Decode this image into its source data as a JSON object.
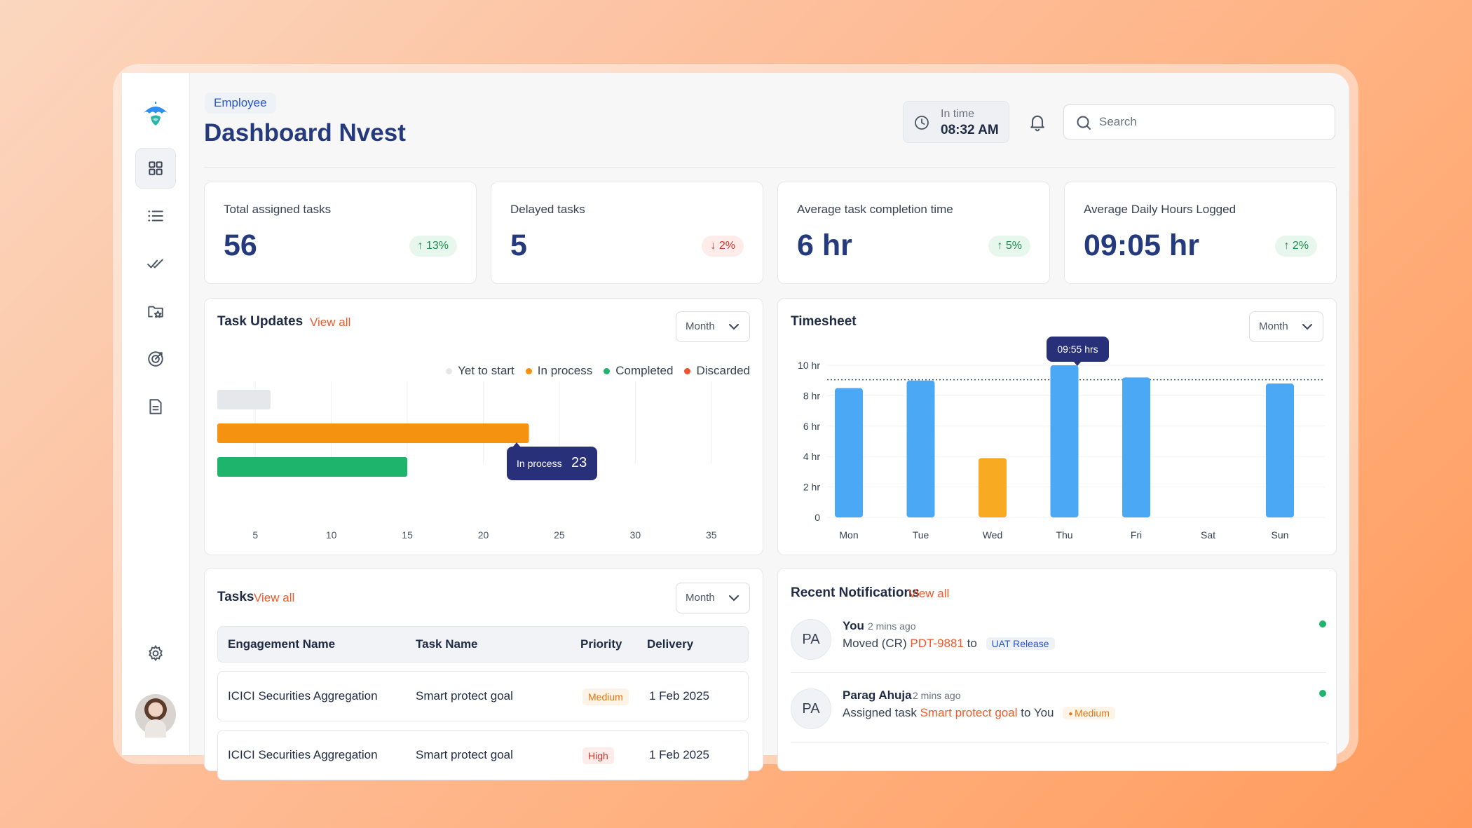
{
  "header": {
    "role_tag": "Employee",
    "title": "Dashboard Nvest",
    "in_time_label": "In time",
    "in_time_value": "08:32 AM",
    "search_placeholder": "Search"
  },
  "sidebar": {
    "items": [
      "grid-icon",
      "list-icon",
      "double-check-icon",
      "folder-star-icon",
      "target-icon",
      "document-icon",
      "settings-icon"
    ]
  },
  "stats": [
    {
      "label": "Total assigned tasks",
      "value": "56",
      "delta": "13%",
      "direction": "up"
    },
    {
      "label": "Delayed tasks",
      "value": "5",
      "delta": "2%",
      "direction": "down"
    },
    {
      "label": "Average task completion time",
      "value": "6 hr",
      "delta": "5%",
      "direction": "up"
    },
    {
      "label": "Average Daily Hours Logged",
      "value": "09:05 hr",
      "delta": "2%",
      "direction": "up"
    }
  ],
  "task_updates": {
    "title": "Task Updates",
    "view_all": "View all",
    "period": "Month",
    "tooltip_label": "In process",
    "tooltip_value": "23"
  },
  "timesheet": {
    "title": "Timesheet",
    "period": "Month",
    "tooltip": "09:55 hrs"
  },
  "chart_data": [
    {
      "type": "bar",
      "orientation": "horizontal",
      "categories": [
        "Yet to start",
        "In process",
        "Completed",
        "Discarded"
      ],
      "values": [
        6,
        23,
        15,
        2.5
      ],
      "colors": [
        "#e5e7eb",
        "#f5920f",
        "#1fb46b",
        "#ef5330"
      ],
      "xticks": [
        5,
        10,
        15,
        20,
        25,
        30,
        35
      ],
      "xlim": [
        2.5,
        37.5
      ],
      "legend": "top-right"
    },
    {
      "type": "bar",
      "categories": [
        "Mon",
        "Tue",
        "Wed",
        "Thu",
        "Fri",
        "Sat",
        "Sun"
      ],
      "values": [
        8.5,
        9,
        3.9,
        10,
        9.2,
        0,
        8.8
      ],
      "colors": [
        "#4aa8f5",
        "#4aa8f5",
        "#f8ab22",
        "#4aa8f5",
        "#4aa8f5",
        "#4aa8f5",
        "#4aa8f5"
      ],
      "yticks": [
        "0",
        "2 hr",
        "4 hr",
        "6 hr",
        "8 hr",
        "10 hr"
      ],
      "ylim": [
        0,
        10
      ],
      "reference_line": 9.05,
      "grid": true
    }
  ],
  "tasks": {
    "title": "Tasks",
    "view_all": "View all",
    "period": "Month",
    "columns": [
      "Engagement Name",
      "Task Name",
      "Priority",
      "Delivery"
    ],
    "rows": [
      {
        "engagement": "ICICI Securities Aggregation",
        "task": "Smart protect goal",
        "priority": "Medium",
        "delivery": "1 Feb 2025"
      },
      {
        "engagement": "ICICI Securities Aggregation",
        "task": "Smart protect goal",
        "priority": "High",
        "delivery": "1 Feb 2025"
      }
    ]
  },
  "notifications": {
    "title": "Recent Notifications",
    "view_all": "View all",
    "items": [
      {
        "initials": "PA",
        "who": "You",
        "ago": "2 mins ago",
        "pre": "Moved (CR)",
        "highlight": "PDT-9881",
        "post": "to",
        "badge": "UAT Release"
      },
      {
        "initials": "PA",
        "who": "Parag Ahuja",
        "ago": "2 mins ago",
        "pre": "Assigned task",
        "highlight": "Smart protect goal",
        "post": "to You",
        "badge": "Medium"
      }
    ]
  }
}
